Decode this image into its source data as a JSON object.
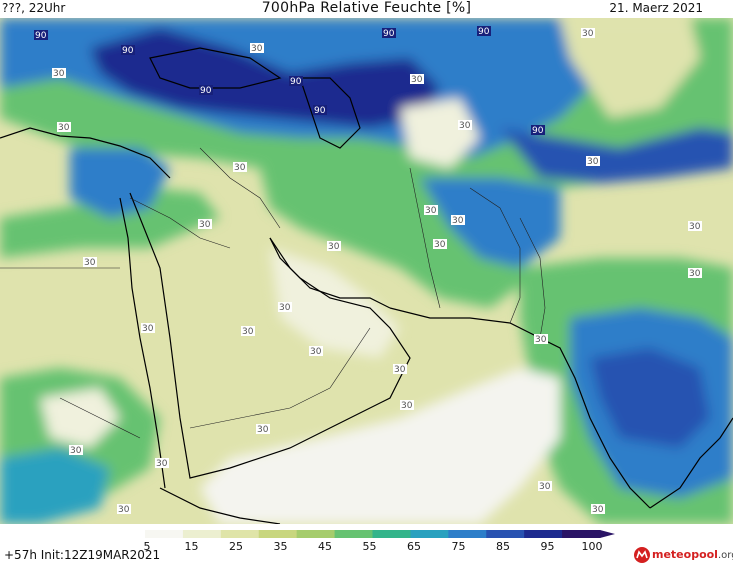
{
  "header": {
    "left": "???, 22Uhr",
    "title": "700hPa Relative Feuchte [%]",
    "right": "21. Maerz 2021"
  },
  "contour_labels": [
    "90",
    "30"
  ],
  "colorbar": {
    "ticks": [
      "5",
      "15",
      "25",
      "35",
      "45",
      "55",
      "65",
      "75",
      "85",
      "95",
      "100"
    ],
    "colors": [
      "#f7f7f2",
      "#ecefd0",
      "#dfe4a8",
      "#c8d67e",
      "#a5cc6c",
      "#66c271",
      "#33b48a",
      "#29a1bf",
      "#2d7ec9",
      "#2852b1",
      "#1d2a8f",
      "#2a1466"
    ]
  },
  "footer": {
    "left": "+57h  Init:12Z19MAR2021",
    "logo_main": "meteopool",
    "logo_suffix": ".org"
  },
  "colors": {
    "dry": "#f4f4ef",
    "low": "#dfe3ad",
    "mid": "#66c271",
    "high": "#2d7ec9",
    "very_high": "#1d2a8f"
  }
}
